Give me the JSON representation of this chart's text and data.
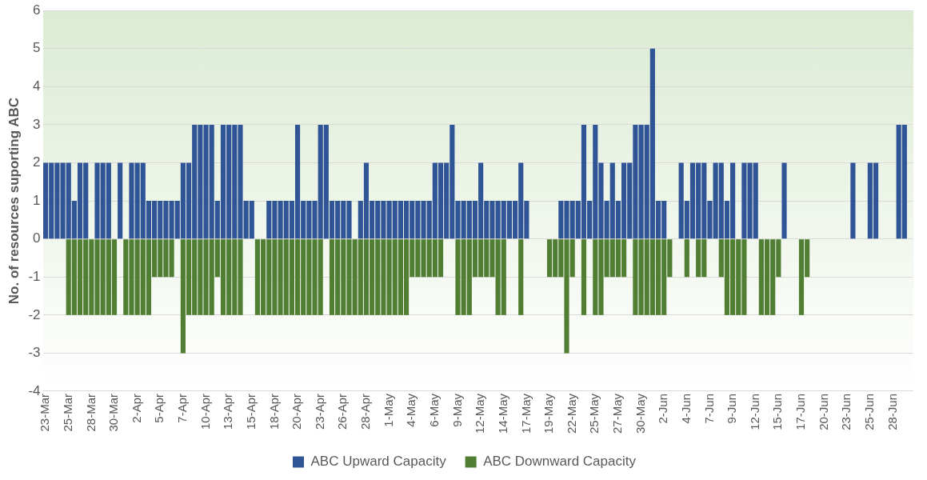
{
  "chart_data": {
    "type": "bar",
    "ylabel": "No. of resources suporting ABC",
    "stacked": true,
    "grid": "y",
    "legend": "bottom",
    "ylim": [
      -4,
      6
    ],
    "yticks": [
      -4,
      -3,
      -2,
      -1,
      0,
      1,
      2,
      3,
      4,
      5,
      6
    ],
    "categories": [
      "23-Mar",
      null,
      null,
      null,
      "25-Mar",
      null,
      null,
      null,
      "28-Mar",
      null,
      null,
      null,
      "30-Mar",
      null,
      null,
      null,
      "2-Apr",
      null,
      null,
      null,
      "5-Apr",
      null,
      null,
      null,
      "7-Apr",
      null,
      null,
      null,
      "10-Apr",
      null,
      null,
      null,
      "13-Apr",
      null,
      null,
      null,
      "15-Apr",
      null,
      null,
      null,
      "18-Apr",
      null,
      null,
      null,
      "20-Apr",
      null,
      null,
      null,
      "23-Apr",
      null,
      null,
      null,
      "26-Apr",
      null,
      null,
      null,
      "28-Apr",
      null,
      null,
      null,
      "1-May",
      null,
      null,
      null,
      "4-May",
      null,
      null,
      null,
      "6-May",
      null,
      null,
      null,
      "9-May",
      null,
      null,
      null,
      "12-May",
      null,
      null,
      null,
      "14-May",
      null,
      null,
      null,
      "17-May",
      null,
      null,
      null,
      "19-May",
      null,
      null,
      null,
      "22-May",
      null,
      null,
      null,
      "25-May",
      null,
      null,
      null,
      "27-May",
      null,
      null,
      null,
      "30-May",
      null,
      null,
      null,
      "2-Jun",
      null,
      null,
      null,
      "4-Jun",
      null,
      null,
      null,
      "7-Jun",
      null,
      null,
      null,
      "9-Jun",
      null,
      null,
      null,
      "12-Jun",
      null,
      null,
      null,
      "15-Jun",
      null,
      null,
      null,
      "17-Jun",
      null,
      null,
      null,
      "20-Jun",
      null,
      null,
      null,
      "23-Jun",
      null,
      null,
      null,
      "25-Jun",
      null,
      null,
      null,
      "28-Jun",
      null,
      null,
      null
    ],
    "series": [
      {
        "name": "ABC Upward Capacity",
        "color": "#2f5597",
        "values": [
          2,
          2,
          2,
          2,
          2,
          1,
          2,
          2,
          0,
          2,
          2,
          2,
          0,
          2,
          0,
          2,
          2,
          2,
          1,
          1,
          1,
          1,
          1,
          1,
          2,
          2,
          3,
          3,
          3,
          3,
          1,
          3,
          3,
          3,
          3,
          1,
          1,
          0,
          0,
          1,
          1,
          1,
          1,
          1,
          3,
          1,
          1,
          1,
          3,
          3,
          1,
          1,
          1,
          1,
          0,
          1,
          2,
          1,
          1,
          1,
          1,
          1,
          1,
          1,
          1,
          1,
          1,
          1,
          2,
          2,
          2,
          3,
          1,
          1,
          1,
          1,
          2,
          1,
          1,
          1,
          1,
          1,
          1,
          2,
          1,
          0,
          0,
          0,
          0,
          0,
          1,
          1,
          1,
          1,
          3,
          1,
          3,
          2,
          1,
          2,
          1,
          2,
          2,
          3,
          3,
          3,
          5,
          1,
          1,
          0,
          0,
          2,
          1,
          2,
          2,
          2,
          1,
          2,
          2,
          1,
          2,
          0,
          2,
          2,
          2,
          0,
          0,
          0,
          0,
          2,
          0,
          0,
          0,
          0,
          0,
          0,
          0,
          0,
          0,
          0,
          0,
          2,
          0,
          0,
          2,
          2,
          0,
          0,
          0,
          3,
          3,
          0
        ]
      },
      {
        "name": "ABC Downward Capacity",
        "color": "#507e32",
        "values": [
          0,
          0,
          0,
          0,
          -2,
          -2,
          -2,
          -2,
          -2,
          -2,
          -2,
          -2,
          -2,
          0,
          -2,
          -2,
          -2,
          -2,
          -2,
          -1,
          -1,
          -1,
          -1,
          0,
          -3,
          -2,
          -2,
          -2,
          -2,
          -2,
          -1,
          -2,
          -2,
          -2,
          -2,
          0,
          0,
          -2,
          -2,
          -2,
          -2,
          -2,
          -2,
          -2,
          -2,
          -2,
          -2,
          -2,
          -2,
          0,
          -2,
          -2,
          -2,
          -2,
          -2,
          -2,
          -2,
          -2,
          -2,
          -2,
          -2,
          -2,
          -2,
          -2,
          -1,
          -1,
          -1,
          -1,
          -1,
          -1,
          0,
          0,
          -2,
          -2,
          -2,
          -1,
          -1,
          -1,
          -1,
          -2,
          -2,
          0,
          0,
          -2,
          0,
          0,
          0,
          0,
          -1,
          -1,
          -1,
          -3,
          -1,
          0,
          -2,
          0,
          -2,
          -2,
          -1,
          -1,
          -1,
          -1,
          0,
          -2,
          -2,
          -2,
          -2,
          -2,
          -2,
          -1,
          0,
          0,
          -1,
          0,
          -1,
          -1,
          0,
          0,
          -1,
          -2,
          -2,
          -2,
          -2,
          0,
          0,
          -2,
          -2,
          -2,
          -1,
          0,
          0,
          0,
          -2,
          -1,
          0,
          0,
          0,
          0,
          0,
          0,
          0,
          0,
          0,
          0,
          0,
          0,
          0,
          0,
          0,
          0,
          0,
          0
        ]
      }
    ]
  }
}
